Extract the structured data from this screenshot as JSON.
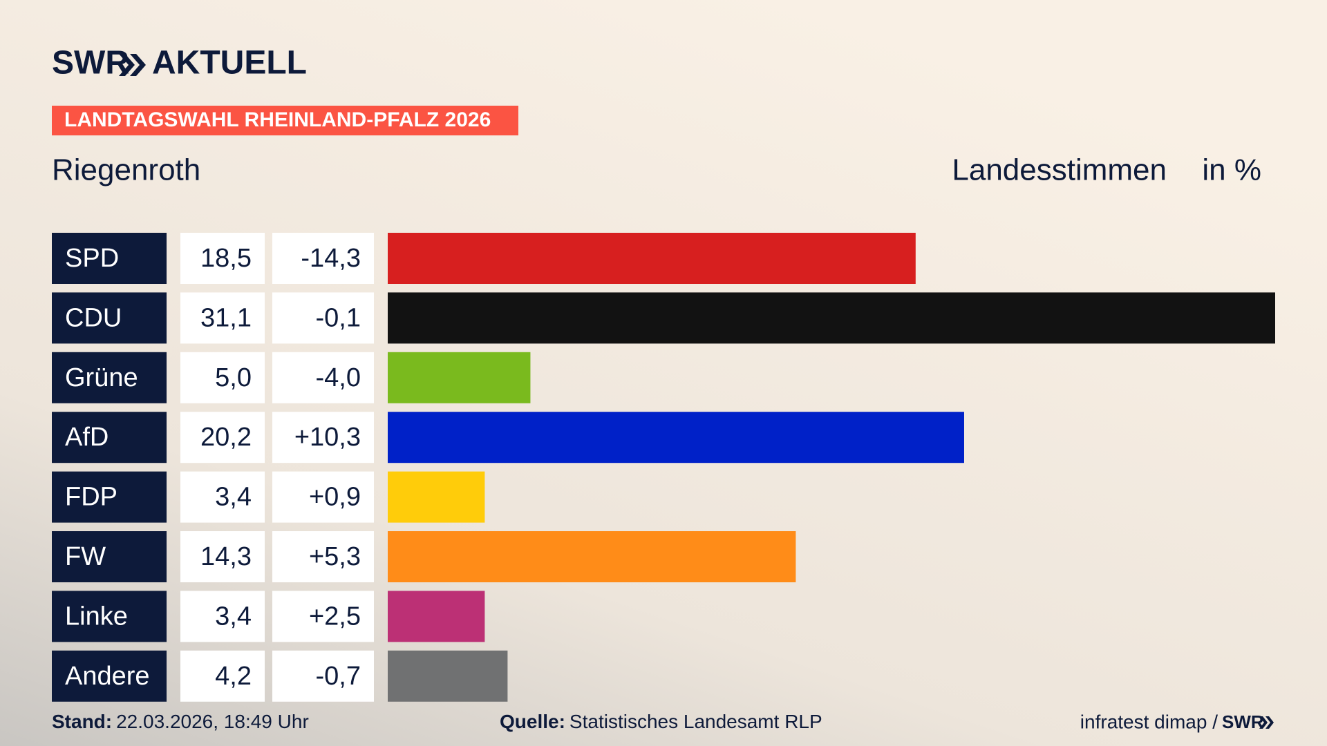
{
  "header": {
    "logo": "SWR",
    "logo_title": "AKTUELL"
  },
  "chart_data": {
    "type": "bar",
    "orientation": "horizontal",
    "banner": "LANDTAGSWAHL RHEINLAND-PFALZ 2026",
    "title": "Riegenroth",
    "subtitle": "Landesstimmen",
    "unit": "in %",
    "categories": [
      "SPD",
      "CDU",
      "Grüne",
      "AfD",
      "FDP",
      "FW",
      "Linke",
      "Andere"
    ],
    "values": [
      18.5,
      31.1,
      5.0,
      20.2,
      3.4,
      14.3,
      3.4,
      4.2
    ],
    "value_labels": [
      "18,5",
      "31,1",
      "5,0",
      "20,2",
      "3,4",
      "14,3",
      "3,4",
      "4,2"
    ],
    "changes": [
      -14.3,
      -0.1,
      -4.0,
      10.3,
      0.9,
      5.3,
      2.5,
      -0.7
    ],
    "change_labels": [
      "-14,3",
      "-0,1",
      "-4,0",
      "+10,3",
      "+0,9",
      "+5,3",
      "+2,5",
      "-0,7"
    ],
    "colors": [
      "#d71f1f",
      "#121212",
      "#7aba1e",
      "#0021c8",
      "#ffcc0a",
      "#ff8c18",
      "#bc3075",
      "#707172"
    ],
    "xlim": [
      0,
      31.1
    ]
  },
  "footer": {
    "stand_label": "Stand:",
    "stand": "22.03.2026, 18:49 Uhr",
    "source_label": "Quelle:",
    "source": "Statistisches Landesamt RLP",
    "credit": "infratest dimap /",
    "credit_logo": "SWR"
  }
}
